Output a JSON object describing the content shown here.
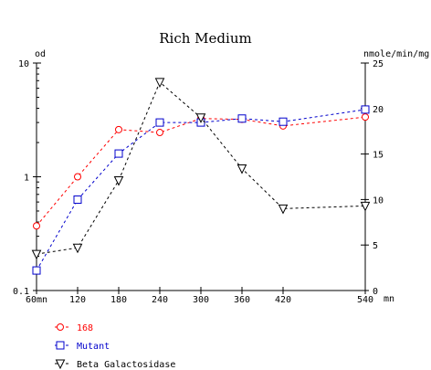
{
  "chart_data": {
    "type": "line",
    "title": "Rich Medium",
    "y_left_label": "od",
    "y_right_label": "nmole/min/mg",
    "x_unit_label": "mn",
    "x": [
      60,
      120,
      180,
      240,
      300,
      360,
      420,
      540
    ],
    "x_tick_labels": [
      "60mn",
      "120",
      "180",
      "240",
      "300",
      "360",
      "420",
      "540"
    ],
    "x_range": [
      60,
      540
    ],
    "y_left_scale": "log",
    "y_left_range": [
      0.1,
      10
    ],
    "y_left_ticks": [
      0.1,
      1,
      10
    ],
    "y_left_tick_labels": [
      "0.1",
      "1",
      "10"
    ],
    "y_right_range": [
      0,
      25
    ],
    "y_right_ticks": [
      0,
      5,
      10,
      15,
      20,
      25
    ],
    "y_right_tick_labels": [
      "0",
      "5",
      "10",
      "15",
      "20",
      "25"
    ],
    "grid": false,
    "legend_placement": "bottom-left",
    "series": [
      {
        "name": "168",
        "axis": "left",
        "color": "#ff0000",
        "marker": "circle",
        "values": [
          0.37,
          1.0,
          2.6,
          2.45,
          3.25,
          3.2,
          2.8,
          3.35
        ]
      },
      {
        "name": "Mutant",
        "axis": "left",
        "color": "#0000cc",
        "marker": "square",
        "values": [
          0.15,
          0.63,
          1.6,
          3.0,
          3.0,
          3.25,
          3.05,
          3.9
        ]
      },
      {
        "name": "Beta Galactosidase",
        "axis": "right",
        "color": "#000000",
        "marker": "triangle-down",
        "values": [
          4.0,
          4.7,
          12.1,
          22.9,
          19.0,
          13.4,
          9.0,
          9.3
        ]
      }
    ]
  }
}
